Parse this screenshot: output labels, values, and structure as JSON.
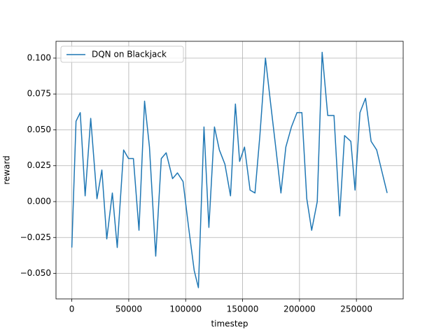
{
  "chart_data": {
    "type": "line",
    "xlabel": "timestep",
    "ylabel": "reward",
    "x": [
      0,
      3700,
      7400,
      11700,
      16600,
      22100,
      26400,
      30700,
      35600,
      39900,
      45500,
      49800,
      54100,
      59000,
      63900,
      68200,
      73700,
      78600,
      82900,
      88500,
      92800,
      97700,
      102600,
      107500,
      111200,
      116100,
      120400,
      125300,
      129600,
      134500,
      139400,
      143700,
      147400,
      151700,
      156600,
      160900,
      165200,
      170100,
      174400,
      179400,
      183700,
      188000,
      192900,
      197800,
      202100,
      206400,
      210700,
      215600,
      219900,
      224800,
      230300,
      235300,
      239600,
      245100,
      248800,
      253100,
      258000,
      262900,
      267800,
      272700,
      277000
    ],
    "series": [
      {
        "name": "DQN on Blackjack",
        "color": "#1f77b4",
        "values": [
          -0.032,
          0.056,
          0.062,
          0.004,
          0.058,
          0.002,
          0.022,
          -0.026,
          0.006,
          -0.032,
          0.036,
          0.03,
          0.03,
          -0.02,
          0.07,
          0.038,
          -0.038,
          0.03,
          0.034,
          0.016,
          0.02,
          0.014,
          -0.018,
          -0.048,
          -0.06,
          0.052,
          -0.018,
          0.052,
          0.036,
          0.026,
          0.004,
          0.068,
          0.028,
          0.038,
          0.008,
          0.006,
          0.046,
          0.1,
          0.07,
          0.036,
          0.006,
          0.038,
          0.052,
          0.062,
          0.062,
          0.002,
          -0.02,
          0.0,
          0.104,
          0.06,
          0.06,
          -0.01,
          0.046,
          0.042,
          0.008,
          0.062,
          0.072,
          0.042,
          0.036,
          0.02,
          0.006
        ]
      }
    ],
    "xlim": [
      -13900,
      291100
    ],
    "ylim": [
      -0.0678,
      0.1117
    ],
    "xticks": [
      0,
      50000,
      100000,
      150000,
      200000,
      250000
    ],
    "yticks": [
      {
        "value": -0.05,
        "label": "−0.050"
      },
      {
        "value": -0.025,
        "label": "−0.025"
      },
      {
        "value": 0,
        "label": "0.000"
      },
      {
        "value": 0.025,
        "label": "0.025"
      },
      {
        "value": 0.05,
        "label": "0.050"
      },
      {
        "value": 0.075,
        "label": "0.075"
      },
      {
        "value": 0.1,
        "label": "0.100"
      }
    ],
    "grid": true,
    "legend": "upper left"
  }
}
